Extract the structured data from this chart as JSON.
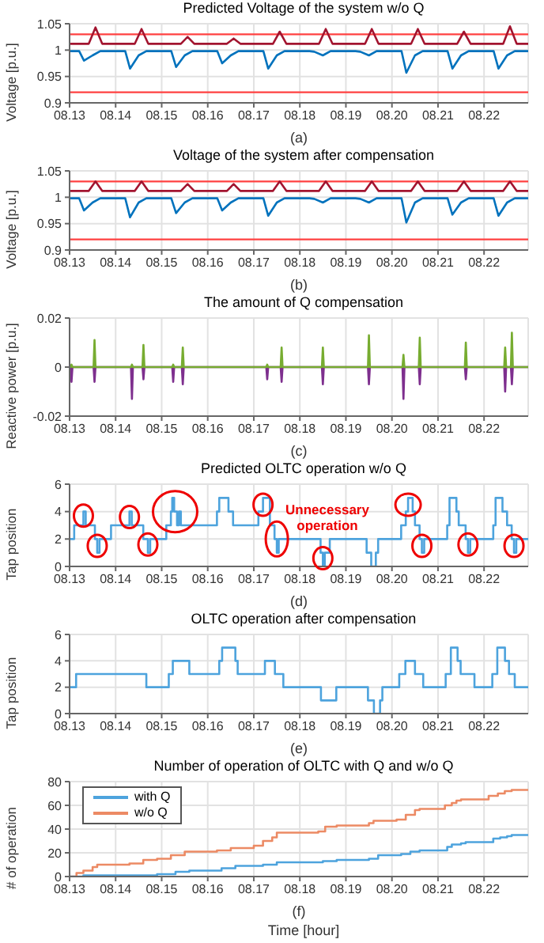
{
  "chart_data": [
    {
      "type": "line",
      "title": "Predicted Voltage of the system w/o Q",
      "xlabel": "(a)",
      "ylabel": "Voltage [p.u.]",
      "xlim": [
        "--08-13",
        "--08-22T23:00"
      ],
      "xticks": [
        {
          "value": "--08-13",
          "label": "08.13"
        },
        {
          "value": "--08-14",
          "label": "08.14"
        },
        {
          "value": "--08-15",
          "label": "08.15"
        },
        {
          "value": "--08-16",
          "label": "08.16"
        },
        {
          "value": "--08-17",
          "label": "08.17"
        },
        {
          "value": "--08-18",
          "label": "08.18"
        },
        {
          "value": "--08-19",
          "label": "08.19"
        },
        {
          "value": "--08-20",
          "label": "08.20"
        },
        {
          "value": "--08-21",
          "label": "08.21"
        },
        {
          "value": "--08-22",
          "label": "08.22"
        }
      ],
      "ylim": [
        0.9,
        1.05
      ],
      "yticks": [
        0.9,
        0.95,
        1,
        1.05
      ],
      "grid": true,
      "ref_lines": [
        {
          "axis": "y",
          "value": 1.03,
          "color": "#ff4040"
        },
        {
          "axis": "y",
          "value": 0.92,
          "color": "#ff4040"
        }
      ],
      "series": [
        {
          "color": "#a2142f",
          "x": [
            "--08-13T00:00",
            "--08-13T10:00",
            "--08-13T13:30",
            "--08-13T17:00",
            "--08-14T00:00",
            "--08-14T10:00",
            "--08-14T13:30",
            "--08-14T17:00",
            "--08-15T00:00",
            "--08-15T10:00",
            "--08-15T13:30",
            "--08-15T17:00",
            "--08-16T00:00",
            "--08-16T10:00",
            "--08-16T13:30",
            "--08-16T17:00",
            "--08-17T00:00",
            "--08-17T10:00",
            "--08-17T13:30",
            "--08-17T17:00",
            "--08-18T00:00",
            "--08-18T10:00",
            "--08-18T13:30",
            "--08-18T17:00",
            "--08-19T00:00",
            "--08-19T10:00",
            "--08-19T13:30",
            "--08-19T17:00",
            "--08-20T00:00",
            "--08-20T10:00",
            "--08-20T13:30",
            "--08-20T17:00",
            "--08-21T00:00",
            "--08-21T10:00",
            "--08-21T13:30",
            "--08-21T17:00",
            "--08-22T00:00",
            "--08-22T10:00",
            "--08-22T13:30",
            "--08-22T17:00",
            "--08-22T23:00"
          ],
          "values": [
            1.012,
            1.012,
            1.043,
            1.012,
            1.012,
            1.012,
            1.04,
            1.012,
            1.012,
            1.012,
            1.025,
            1.012,
            1.012,
            1.012,
            1.022,
            1.012,
            1.012,
            1.012,
            1.035,
            1.012,
            1.012,
            1.012,
            1.04,
            1.012,
            1.012,
            1.012,
            1.04,
            1.012,
            1.012,
            1.012,
            1.04,
            1.012,
            1.012,
            1.012,
            1.035,
            1.012,
            1.012,
            1.012,
            1.045,
            1.012,
            1.012
          ]
        },
        {
          "color": "#0072bd",
          "x": [
            "--08-13T00:00",
            "--08-13T05:00",
            "--08-13T07:30",
            "--08-13T12:00",
            "--08-13T16:00",
            "--08-14T00:00",
            "--08-14T05:00",
            "--08-14T07:30",
            "--08-14T12:00",
            "--08-14T16:00",
            "--08-15T00:00",
            "--08-15T05:00",
            "--08-15T07:30",
            "--08-15T12:00",
            "--08-15T16:00",
            "--08-16T00:00",
            "--08-16T05:00",
            "--08-16T07:30",
            "--08-16T12:00",
            "--08-16T16:00",
            "--08-17T00:00",
            "--08-17T05:00",
            "--08-17T07:30",
            "--08-17T12:00",
            "--08-17T16:00",
            "--08-18T00:00",
            "--08-18T05:00",
            "--08-18T07:30",
            "--08-18T12:00",
            "--08-18T16:00",
            "--08-19T00:00",
            "--08-19T05:00",
            "--08-19T07:30",
            "--08-19T12:00",
            "--08-19T16:00",
            "--08-20T00:00",
            "--08-20T05:00",
            "--08-20T07:30",
            "--08-20T12:00",
            "--08-20T16:00",
            "--08-21T00:00",
            "--08-21T05:00",
            "--08-21T07:30",
            "--08-21T12:00",
            "--08-21T16:00",
            "--08-22T00:00",
            "--08-22T05:00",
            "--08-22T07:30",
            "--08-22T12:00",
            "--08-22T16:00",
            "--08-22T23:00"
          ],
          "values": [
            0.998,
            0.998,
            0.98,
            0.99,
            0.998,
            0.998,
            0.998,
            0.965,
            0.99,
            0.998,
            0.998,
            0.998,
            0.968,
            0.99,
            0.998,
            0.998,
            0.998,
            0.975,
            0.99,
            0.998,
            0.998,
            0.998,
            0.965,
            0.99,
            0.998,
            0.998,
            0.998,
            0.997,
            0.99,
            0.998,
            0.998,
            0.998,
            0.997,
            0.99,
            0.998,
            0.998,
            0.998,
            0.957,
            0.99,
            0.998,
            0.998,
            0.998,
            0.965,
            0.99,
            0.998,
            0.998,
            0.998,
            0.965,
            0.99,
            0.998,
            0.998
          ]
        }
      ]
    },
    {
      "type": "line",
      "title": "Voltage of the system after compensation",
      "xlabel": "(b)",
      "ylabel": "Voltage [p.u.]",
      "xlim": [
        "--08-13",
        "--08-22T23:00"
      ],
      "xticks": [
        {
          "value": "--08-13",
          "label": "08.13"
        },
        {
          "value": "--08-14",
          "label": "08.14"
        },
        {
          "value": "--08-15",
          "label": "08.15"
        },
        {
          "value": "--08-16",
          "label": "08.16"
        },
        {
          "value": "--08-17",
          "label": "08.17"
        },
        {
          "value": "--08-18",
          "label": "08.18"
        },
        {
          "value": "--08-19",
          "label": "08.19"
        },
        {
          "value": "--08-20",
          "label": "08.20"
        },
        {
          "value": "--08-21",
          "label": "08.21"
        },
        {
          "value": "--08-22",
          "label": "08.22"
        }
      ],
      "ylim": [
        0.9,
        1.05
      ],
      "yticks": [
        0.9,
        0.95,
        1,
        1.05
      ],
      "grid": true,
      "ref_lines": [
        {
          "axis": "y",
          "value": 1.03,
          "color": "#ff4040"
        },
        {
          "axis": "y",
          "value": 0.92,
          "color": "#ff4040"
        }
      ],
      "series": [
        {
          "color": "#a2142f",
          "x": [
            "--08-13T00:00",
            "--08-13T10:00",
            "--08-13T13:30",
            "--08-13T17:00",
            "--08-14T00:00",
            "--08-14T10:00",
            "--08-14T13:30",
            "--08-14T17:00",
            "--08-15T00:00",
            "--08-15T10:00",
            "--08-15T13:30",
            "--08-15T17:00",
            "--08-16T00:00",
            "--08-16T10:00",
            "--08-16T13:30",
            "--08-16T17:00",
            "--08-17T00:00",
            "--08-17T10:00",
            "--08-17T13:30",
            "--08-17T17:00",
            "--08-18T00:00",
            "--08-18T10:00",
            "--08-18T13:30",
            "--08-18T17:00",
            "--08-19T00:00",
            "--08-19T10:00",
            "--08-19T13:30",
            "--08-19T17:00",
            "--08-20T00:00",
            "--08-20T10:00",
            "--08-20T13:30",
            "--08-20T17:00",
            "--08-21T00:00",
            "--08-21T10:00",
            "--08-21T13:30",
            "--08-21T17:00",
            "--08-22T00:00",
            "--08-22T10:00",
            "--08-22T13:30",
            "--08-22T17:00",
            "--08-22T23:00"
          ],
          "values": [
            1.012,
            1.012,
            1.03,
            1.012,
            1.012,
            1.012,
            1.03,
            1.012,
            1.012,
            1.012,
            1.025,
            1.012,
            1.012,
            1.012,
            1.025,
            1.012,
            1.012,
            1.012,
            1.03,
            1.012,
            1.012,
            1.012,
            1.03,
            1.012,
            1.012,
            1.012,
            1.03,
            1.012,
            1.012,
            1.012,
            1.03,
            1.012,
            1.012,
            1.012,
            1.03,
            1.012,
            1.012,
            1.012,
            1.03,
            1.012,
            1.012
          ]
        },
        {
          "color": "#0072bd",
          "x": [
            "--08-13T00:00",
            "--08-13T05:00",
            "--08-13T07:30",
            "--08-13T12:00",
            "--08-13T16:00",
            "--08-14T00:00",
            "--08-14T05:00",
            "--08-14T07:30",
            "--08-14T12:00",
            "--08-14T16:00",
            "--08-15T00:00",
            "--08-15T05:00",
            "--08-15T07:30",
            "--08-15T12:00",
            "--08-15T16:00",
            "--08-16T00:00",
            "--08-16T05:00",
            "--08-16T07:30",
            "--08-16T12:00",
            "--08-16T16:00",
            "--08-17T00:00",
            "--08-17T05:00",
            "--08-17T07:30",
            "--08-17T12:00",
            "--08-17T16:00",
            "--08-18T00:00",
            "--08-18T05:00",
            "--08-18T07:30",
            "--08-18T12:00",
            "--08-18T16:00",
            "--08-19T00:00",
            "--08-19T05:00",
            "--08-19T07:30",
            "--08-19T12:00",
            "--08-19T16:00",
            "--08-20T00:00",
            "--08-20T05:00",
            "--08-20T07:30",
            "--08-20T12:00",
            "--08-20T16:00",
            "--08-21T00:00",
            "--08-21T05:00",
            "--08-21T07:30",
            "--08-21T12:00",
            "--08-21T16:00",
            "--08-22T00:00",
            "--08-22T05:00",
            "--08-22T07:30",
            "--08-22T12:00",
            "--08-22T16:00",
            "--08-22T23:00"
          ],
          "values": [
            0.998,
            0.998,
            0.975,
            0.99,
            0.998,
            0.998,
            0.998,
            0.962,
            0.99,
            0.998,
            0.998,
            0.998,
            0.97,
            0.99,
            0.998,
            0.998,
            0.998,
            0.975,
            0.99,
            0.998,
            0.998,
            0.998,
            0.965,
            0.99,
            0.998,
            0.998,
            0.998,
            0.997,
            0.99,
            0.998,
            0.998,
            0.998,
            0.997,
            0.99,
            0.998,
            0.998,
            0.998,
            0.952,
            0.99,
            0.998,
            0.998,
            0.998,
            0.967,
            0.99,
            0.998,
            0.998,
            0.998,
            0.965,
            0.99,
            0.998,
            0.998
          ]
        }
      ]
    },
    {
      "type": "line",
      "title": "The amount of Q compensation",
      "xlabel": "(c)",
      "ylabel": "Reactive power [p.u.]",
      "xlim": [
        "--08-13",
        "--08-22T23:00"
      ],
      "xticks": [
        {
          "value": "--08-13",
          "label": "08.13"
        },
        {
          "value": "--08-14",
          "label": "08.14"
        },
        {
          "value": "--08-15",
          "label": "08.15"
        },
        {
          "value": "--08-16",
          "label": "08.16"
        },
        {
          "value": "--08-17",
          "label": "08.17"
        },
        {
          "value": "--08-18",
          "label": "08.18"
        },
        {
          "value": "--08-19",
          "label": "08.19"
        },
        {
          "value": "--08-20",
          "label": "08.20"
        },
        {
          "value": "--08-21",
          "label": "08.21"
        },
        {
          "value": "--08-22",
          "label": "08.22"
        }
      ],
      "ylim": [
        -0.02,
        0.02
      ],
      "yticks": [
        -0.02,
        0,
        0.02
      ],
      "grid": true,
      "x": [
        "--08-13T00:00",
        "--08-13T00:30",
        "--08-13T01:00",
        "--08-13T01:30",
        "--08-13T12:30",
        "--08-13T13:00",
        "--08-13T13:30",
        "--08-14T08:00",
        "--08-14T08:30",
        "--08-14T09:00",
        "--08-14T14:00",
        "--08-14T14:30",
        "--08-14T15:00",
        "--08-15T05:30",
        "--08-15T06:00",
        "--08-15T06:30",
        "--08-15T10:30",
        "--08-15T11:00",
        "--08-15T11:30",
        "--08-17T06:30",
        "--08-17T07:00",
        "--08-17T07:30",
        "--08-17T14:00",
        "--08-17T14:30",
        "--08-17T15:00",
        "--08-18T11:30",
        "--08-18T12:00",
        "--08-18T12:30",
        "--08-19T11:30",
        "--08-19T12:00",
        "--08-19T12:30",
        "--08-20T05:30",
        "--08-20T06:00",
        "--08-20T06:30",
        "--08-20T14:00",
        "--08-20T14:30",
        "--08-20T15:00",
        "--08-21T14:00",
        "--08-21T14:30",
        "--08-21T15:00",
        "--08-22T10:30",
        "--08-22T11:00",
        "--08-22T11:30",
        "--08-22T14:00",
        "--08-22T14:30",
        "--08-22T15:00",
        "--08-22T23:00"
      ],
      "series": [
        {
          "color": "#7e2f8e",
          "values": [
            0,
            0,
            -0.006,
            0,
            0,
            -0.006,
            0,
            0,
            -0.013,
            0,
            0,
            -0.005,
            0,
            0,
            -0.006,
            0,
            0,
            -0.007,
            0,
            0,
            -0.005,
            0,
            0,
            -0.006,
            0,
            0,
            -0.007,
            0,
            0,
            -0.007,
            0,
            0,
            -0.013,
            0,
            0,
            -0.007,
            0,
            0,
            -0.005,
            0,
            0,
            -0.01,
            0,
            0,
            -0.007,
            0,
            0
          ]
        },
        {
          "color": "#77ac30",
          "values": [
            0,
            0,
            0.001,
            0,
            0,
            0.011,
            0,
            0,
            0.001,
            0,
            0,
            0.009,
            0,
            0,
            0.001,
            0,
            0,
            0.008,
            0,
            0,
            0.001,
            0,
            0,
            0.008,
            0,
            0,
            0.008,
            0,
            0,
            0.013,
            0,
            0,
            0.005,
            0,
            0,
            0.012,
            0,
            0,
            0.01,
            0,
            0,
            0.008,
            0,
            0,
            0.014,
            0,
            0
          ]
        }
      ]
    },
    {
      "type": "step",
      "title": "Predicted OLTC operation w/o Q",
      "xlabel": "(d)",
      "ylabel": "Tap position",
      "xlim": [
        "--08-13",
        "--08-22T23:00"
      ],
      "xticks": [
        {
          "value": "--08-13",
          "label": "08.13"
        },
        {
          "value": "--08-14",
          "label": "08.14"
        },
        {
          "value": "--08-15",
          "label": "08.15"
        },
        {
          "value": "--08-16",
          "label": "08.16"
        },
        {
          "value": "--08-17",
          "label": "08.17"
        },
        {
          "value": "--08-18",
          "label": "08.18"
        },
        {
          "value": "--08-19",
          "label": "08.19"
        },
        {
          "value": "--08-20",
          "label": "08.20"
        },
        {
          "value": "--08-21",
          "label": "08.21"
        },
        {
          "value": "--08-22",
          "label": "08.22"
        }
      ],
      "ylim": [
        0,
        6
      ],
      "yticks": [
        0,
        2,
        4,
        6
      ],
      "grid": true,
      "annotations": [
        "Unnecessary operation"
      ],
      "series": [
        {
          "color": "#4da3dd",
          "x": [
            "--08-13T00:00",
            "--08-13T02:24",
            "--08-13T07:12",
            "--08-13T08:24",
            "--08-13T13:12",
            "--08-13T14:24",
            "--08-13T15:36",
            "--08-13T21:36",
            "--08-14T07:12",
            "--08-14T08:24",
            "--08-14T14:24",
            "--08-14T16:48",
            "--08-14T18:00",
            "--08-15T02:24",
            "--08-15T04:48",
            "--08-15T05:30",
            "--08-15T06:30",
            "--08-15T08:00",
            "--08-15T09:00",
            "--08-15T10:00",
            "--08-16T04:48",
            "--08-16T06:00",
            "--08-16T10:48",
            "--08-16T13:12",
            "--08-17T02:24",
            "--08-17T04:48",
            "--08-17T08:24",
            "--08-17T10:48",
            "--08-17T12:00",
            "--08-17T13:00",
            "--08-18T10:48",
            "--08-18T12:00",
            "--08-18T13:00",
            "--08-18T15:36",
            "--08-19T10:48",
            "--08-19T13:12",
            "--08-19T15:36",
            "--08-19T16:48",
            "--08-20T04:48",
            "--08-20T07:12",
            "--08-20T08:24",
            "--08-20T10:48",
            "--08-20T12:00",
            "--08-20T14:24",
            "--08-20T15:36",
            "--08-20T16:48",
            "--08-21T04:48",
            "--08-21T06:00",
            "--08-21T09:36",
            "--08-21T10:48",
            "--08-21T14:24",
            "--08-21T15:36",
            "--08-21T16:48",
            "--08-22T04:48",
            "--08-22T06:00",
            "--08-22T09:36",
            "--08-22T12:00",
            "--08-22T14:24",
            "--08-22T15:36",
            "--08-22T16:48",
            "--08-22T23:00"
          ],
          "values": [
            2,
            3,
            4,
            3,
            2,
            1,
            2,
            3,
            4,
            3,
            2,
            1,
            2,
            3,
            4,
            5,
            4,
            3,
            4,
            3,
            4,
            5,
            4,
            3,
            4,
            5,
            3,
            2,
            1,
            2,
            1,
            0,
            1,
            2,
            1,
            0,
            1,
            2,
            3,
            4,
            5,
            4,
            3,
            2,
            1,
            2,
            3,
            5,
            4,
            3,
            2,
            1,
            2,
            3,
            5,
            4,
            3,
            2,
            1,
            2,
            2
          ]
        }
      ]
    },
    {
      "type": "step",
      "title": "OLTC operation after compensation",
      "xlabel": "(e)",
      "ylabel": "Tap position",
      "xlim": [
        "--08-13",
        "--08-22T23:00"
      ],
      "xticks": [
        {
          "value": "--08-13",
          "label": "08.13"
        },
        {
          "value": "--08-14",
          "label": "08.14"
        },
        {
          "value": "--08-15",
          "label": "08.15"
        },
        {
          "value": "--08-16",
          "label": "08.16"
        },
        {
          "value": "--08-17",
          "label": "08.17"
        },
        {
          "value": "--08-18",
          "label": "08.18"
        },
        {
          "value": "--08-19",
          "label": "08.19"
        },
        {
          "value": "--08-20",
          "label": "08.20"
        },
        {
          "value": "--08-21",
          "label": "08.21"
        },
        {
          "value": "--08-22",
          "label": "08.22"
        }
      ],
      "ylim": [
        0,
        6
      ],
      "yticks": [
        0,
        2,
        4,
        6
      ],
      "grid": true,
      "series": [
        {
          "color": "#4da3dd",
          "x": [
            "--08-13T00:00",
            "--08-13T03:24",
            "--08-14T16:00",
            "--08-15T03:42",
            "--08-15T05:48",
            "--08-15T14:24",
            "--08-16T06:00",
            "--08-16T07:30",
            "--08-16T14:24",
            "--08-16T15:36",
            "--08-17T05:48",
            "--08-17T11:00",
            "--08-17T15:24",
            "--08-18T11:00",
            "--08-18T19:00",
            "--08-19T11:30",
            "--08-19T14:36",
            "--08-19T17:48",
            "--08-19T19:00",
            "--08-20T03:48",
            "--08-20T07:00",
            "--08-20T12:00",
            "--08-20T16:18",
            "--08-21T04:00",
            "--08-21T06:42",
            "--08-21T10:12",
            "--08-21T11:48",
            "--08-21T19:00",
            "--08-22T04:18",
            "--08-22T06:54",
            "--08-22T10:54",
            "--08-22T13:00",
            "--08-22T16:00",
            "--08-22T23:00"
          ],
          "values": [
            2,
            3,
            2,
            3,
            4,
            3,
            4,
            5,
            4,
            3,
            4,
            3,
            2,
            1,
            2,
            1,
            0,
            1,
            2,
            3,
            4,
            3,
            2,
            3,
            5,
            4,
            3,
            2,
            3,
            5,
            4,
            3,
            2,
            2
          ]
        }
      ]
    },
    {
      "type": "step",
      "title": "Number of operation of OLTC with Q and w/o Q",
      "xlabel": "(f)",
      "ylabel": "# of operation",
      "xlim": [
        "--08-13",
        "--08-22T23:00"
      ],
      "xticks": [
        {
          "value": "--08-13",
          "label": "08.13"
        },
        {
          "value": "--08-14",
          "label": "08.14"
        },
        {
          "value": "--08-15",
          "label": "08.15"
        },
        {
          "value": "--08-16",
          "label": "08.16"
        },
        {
          "value": "--08-17",
          "label": "08.17"
        },
        {
          "value": "--08-18",
          "label": "08.18"
        },
        {
          "value": "--08-19",
          "label": "08.19"
        },
        {
          "value": "--08-20",
          "label": "08.20"
        },
        {
          "value": "--08-21",
          "label": "08.21"
        },
        {
          "value": "--08-22",
          "label": "08.22"
        }
      ],
      "ylim": [
        0,
        80
      ],
      "yticks": [
        0,
        20,
        40,
        60,
        80
      ],
      "grid": true,
      "legend": "top left",
      "annotations": [
        "Time [hour]"
      ],
      "series": [
        {
          "name": "with Q",
          "color": "#4da3dd",
          "x": [
            "--08-13T00:00",
            "--08-13T07:12",
            "--08-14T21:36",
            "--08-15T07:12",
            "--08-15T14:24",
            "--08-16T07:12",
            "--08-16T14:24",
            "--08-17T04:48",
            "--08-17T12:00",
            "--08-18T12:00",
            "--08-18T19:12",
            "--08-19T12:00",
            "--08-19T16:48",
            "--08-20T04:48",
            "--08-20T09:36",
            "--08-20T14:24",
            "--08-21T04:48",
            "--08-21T07:12",
            "--08-21T12:00",
            "--08-21T14:24",
            "--08-22T04:48",
            "--08-22T08:24",
            "--08-22T12:00",
            "--08-22T14:24",
            "--08-22T23:00"
          ],
          "values": [
            0,
            1,
            2,
            4,
            5,
            7,
            9,
            10,
            12,
            13,
            14,
            15,
            18,
            19,
            21,
            22,
            25,
            27,
            28,
            29,
            32,
            33,
            34,
            35,
            35
          ]
        },
        {
          "name": "w/o Q",
          "color": "#ec8a64",
          "x": [
            "--08-13T00:00",
            "--08-13T03:36",
            "--08-13T07:12",
            "--08-13T12:00",
            "--08-13T14:24",
            "--08-14T07:12",
            "--08-14T14:24",
            "--08-14T21:36",
            "--08-15T04:48",
            "--08-15T12:00",
            "--08-16T04:48",
            "--08-16T12:00",
            "--08-17T00:00",
            "--08-17T04:48",
            "--08-17T09:36",
            "--08-17T12:00",
            "--08-18T09:36",
            "--08-18T13:12",
            "--08-18T19:12",
            "--08-19T12:00",
            "--08-19T14:24",
            "--08-20T02:24",
            "--08-20T07:12",
            "--08-20T12:00",
            "--08-20T14:24",
            "--08-21T03:36",
            "--08-21T07:12",
            "--08-21T09:36",
            "--08-21T12:00",
            "--08-22T02:24",
            "--08-22T07:12",
            "--08-22T10:48",
            "--08-22T14:24",
            "--08-22T23:00"
          ],
          "values": [
            0,
            3,
            5,
            8,
            10,
            11,
            14,
            15,
            18,
            21,
            22,
            24,
            26,
            30,
            33,
            37,
            38,
            42,
            43,
            45,
            47,
            48,
            52,
            56,
            57,
            60,
            62,
            64,
            65,
            68,
            70,
            72,
            73,
            73
          ]
        }
      ]
    }
  ]
}
